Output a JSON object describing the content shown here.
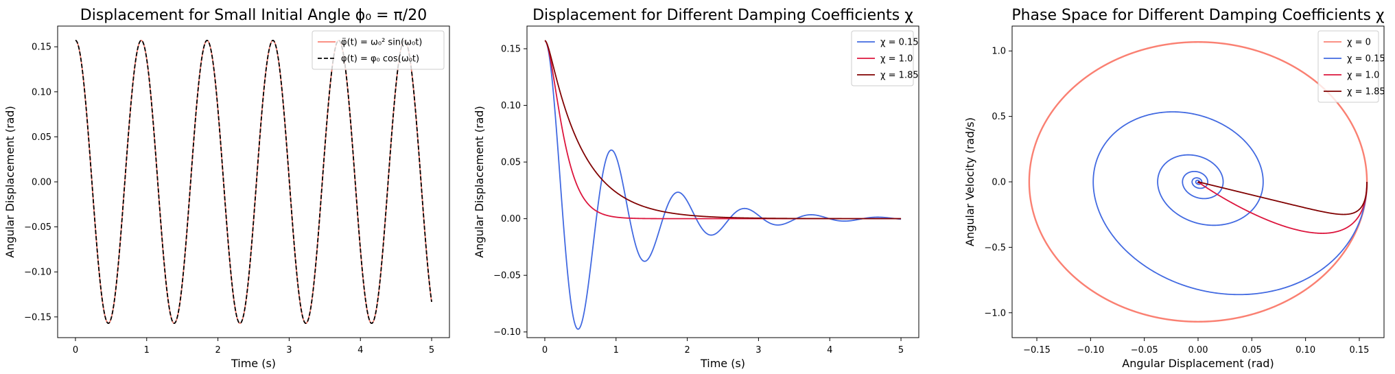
{
  "chart_data": [
    {
      "type": "line",
      "title": "Displacement for Small Initial Angle ϕ₀ = π/20",
      "xlabel": "Time (s)",
      "ylabel": "Angular Displacement (rad)",
      "xlim": [
        -0.25,
        5.25
      ],
      "ylim": [
        -0.173,
        0.173
      ],
      "xticks": [
        "0",
        "1",
        "2",
        "3",
        "4",
        "5"
      ],
      "yticks": [
        "−0.15",
        "−0.10",
        "−0.05",
        "0.00",
        "0.05",
        "0.10",
        "0.15"
      ],
      "legend_position": "top-right",
      "series": [
        {
          "name": "φ̈(t) = ω₀² sin(ω₀t)",
          "color": "#fa8072",
          "style": "solid",
          "formula": "0.1571*cos(6.8*t)",
          "t_range": [
            0,
            5
          ]
        },
        {
          "name": "φ(t) = φ₀ cos(ω₀t)",
          "color": "#000000",
          "style": "dashed",
          "formula": "0.1571*cos(6.8*t)",
          "t_range": [
            0,
            5
          ]
        }
      ]
    },
    {
      "type": "line",
      "title": "Displacement for Different Damping Coefficients χ",
      "xlabel": "Time (s)",
      "ylabel": "Angular Displacement (rad)",
      "xlim": [
        -0.25,
        5.25
      ],
      "ylim": [
        -0.105,
        0.17
      ],
      "xticks": [
        "0",
        "1",
        "2",
        "3",
        "4",
        "5"
      ],
      "yticks": [
        "−0.10",
        "−0.05",
        "0.00",
        "0.05",
        "0.10",
        "0.15"
      ],
      "legend_position": "top-right",
      "series": [
        {
          "name": "χ = 0.15",
          "color": "#4169e1",
          "chi": 0.15
        },
        {
          "name": "χ = 1.0",
          "color": "#dc143c",
          "chi": 1.0
        },
        {
          "name": "χ = 1.85",
          "color": "#800000",
          "chi": 1.85
        }
      ],
      "phi0": 0.1571,
      "omega0": 6.8,
      "t_range": [
        0,
        5
      ]
    },
    {
      "type": "line",
      "title": "Phase Space for Different Damping Coefficients χ",
      "xlabel": "Angular Displacement (rad)",
      "ylabel": "Angular Velocity (rad/s)",
      "xlim": [
        -0.173,
        0.173
      ],
      "ylim": [
        -1.19,
        1.19
      ],
      "xticks": [
        "−0.15",
        "−0.10",
        "−0.05",
        "0.00",
        "0.05",
        "0.10",
        "0.15"
      ],
      "yticks": [
        "−1.0",
        "−0.5",
        "0.0",
        "0.5",
        "1.0"
      ],
      "legend_position": "top-right",
      "series": [
        {
          "name": "χ = 0",
          "color": "#fa8072",
          "chi": 0
        },
        {
          "name": "χ = 0.15",
          "color": "#4169e1",
          "chi": 0.15
        },
        {
          "name": "χ = 1.0",
          "color": "#dc143c",
          "chi": 1.0
        },
        {
          "name": "χ = 1.85",
          "color": "#800000",
          "chi": 1.85
        }
      ],
      "phi0": 0.1571,
      "omega0": 6.8,
      "t_range": [
        0,
        5
      ]
    }
  ]
}
